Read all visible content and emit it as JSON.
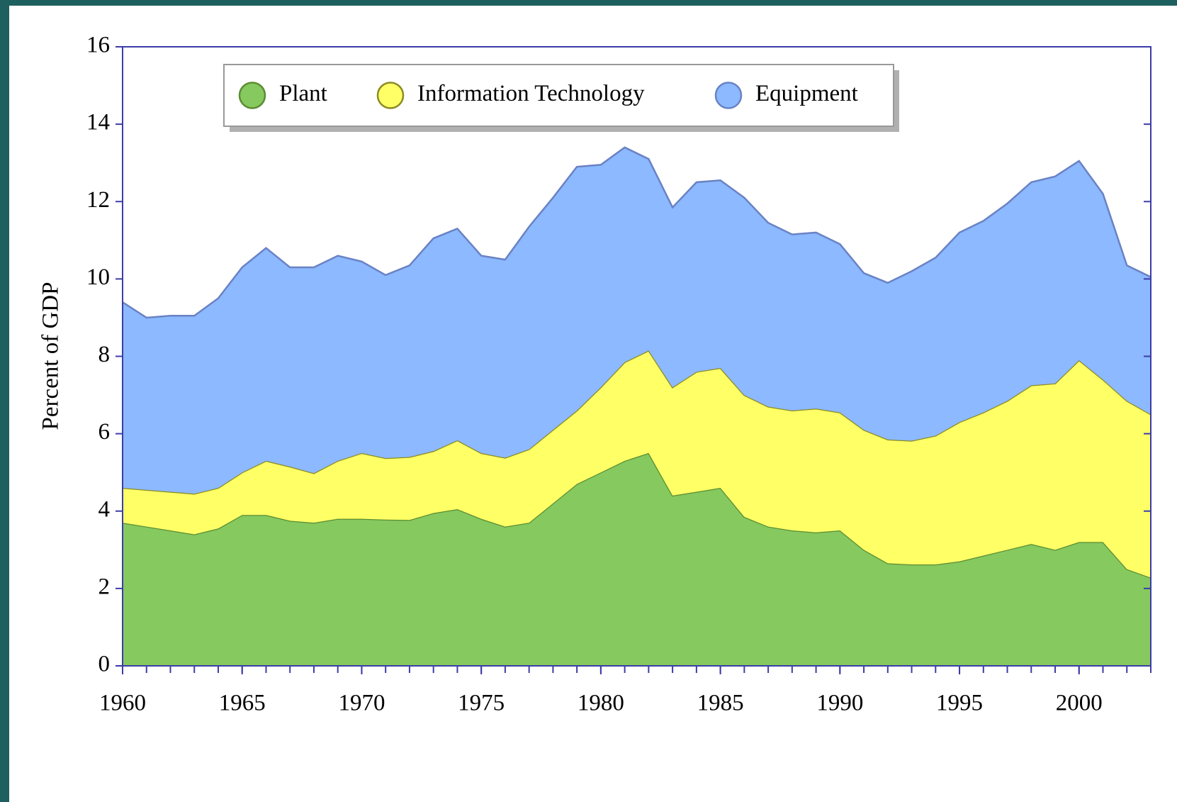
{
  "chart_data": {
    "type": "stacked_area",
    "y_label": "Percent of GDP",
    "x": [
      1960,
      1961,
      1962,
      1963,
      1964,
      1965,
      1966,
      1967,
      1968,
      1969,
      1970,
      1971,
      1972,
      1973,
      1974,
      1975,
      1976,
      1977,
      1978,
      1979,
      1980,
      1981,
      1982,
      1983,
      1984,
      1985,
      1986,
      1987,
      1988,
      1989,
      1990,
      1991,
      1992,
      1993,
      1994,
      1995,
      1996,
      1997,
      1998,
      1999,
      2000,
      2001,
      2002,
      2003
    ],
    "series": [
      {
        "name": "Plant",
        "color": "#85c95f",
        "stroke": "#5b8c32",
        "values": [
          3.7,
          3.6,
          3.5,
          3.4,
          3.55,
          3.9,
          3.9,
          3.75,
          3.7,
          3.8,
          3.8,
          3.78,
          3.77,
          3.95,
          4.05,
          3.8,
          3.6,
          3.7,
          4.2,
          4.7,
          5.0,
          5.3,
          5.5,
          4.4,
          4.5,
          4.6,
          3.85,
          3.6,
          3.5,
          3.45,
          3.5,
          3.0,
          2.65,
          2.62,
          2.62,
          2.7,
          2.85,
          3.0,
          3.15,
          3.0,
          3.2,
          3.2,
          2.5,
          2.28
        ]
      },
      {
        "name": "Information Technology",
        "color": "#ffff66",
        "stroke": "#8c8a22",
        "values": [
          0.9,
          0.95,
          1.0,
          1.05,
          1.05,
          1.1,
          1.4,
          1.4,
          1.28,
          1.5,
          1.7,
          1.59,
          1.63,
          1.6,
          1.78,
          1.7,
          1.78,
          1.9,
          1.9,
          1.9,
          2.2,
          2.55,
          2.65,
          2.8,
          3.1,
          3.1,
          3.15,
          3.1,
          3.1,
          3.2,
          3.05,
          3.1,
          3.2,
          3.2,
          3.33,
          3.6,
          3.7,
          3.85,
          4.1,
          4.3,
          4.7,
          4.2,
          4.35,
          4.22
        ]
      },
      {
        "name": "Equipment",
        "color": "#8cb9ff",
        "stroke": "#6a82c4",
        "values": [
          4.8,
          4.45,
          4.55,
          4.6,
          4.9,
          5.3,
          5.5,
          5.15,
          5.32,
          5.3,
          4.95,
          4.73,
          4.95,
          5.5,
          5.47,
          5.1,
          5.12,
          5.75,
          6.0,
          6.3,
          5.75,
          5.55,
          4.95,
          4.65,
          4.9,
          4.85,
          5.1,
          4.75,
          4.55,
          4.55,
          4.35,
          4.05,
          4.05,
          4.38,
          4.6,
          4.9,
          4.95,
          5.1,
          5.25,
          5.35,
          5.15,
          4.8,
          3.5,
          3.55
        ]
      }
    ],
    "xlim": [
      1960,
      2003
    ],
    "xticks": [
      1960,
      1965,
      1970,
      1975,
      1980,
      1985,
      1990,
      1995,
      2000
    ],
    "ylim": [
      0,
      16
    ],
    "yticks": [
      0,
      2,
      4,
      6,
      8,
      10,
      12,
      14,
      16
    ],
    "legend": "top-left"
  }
}
